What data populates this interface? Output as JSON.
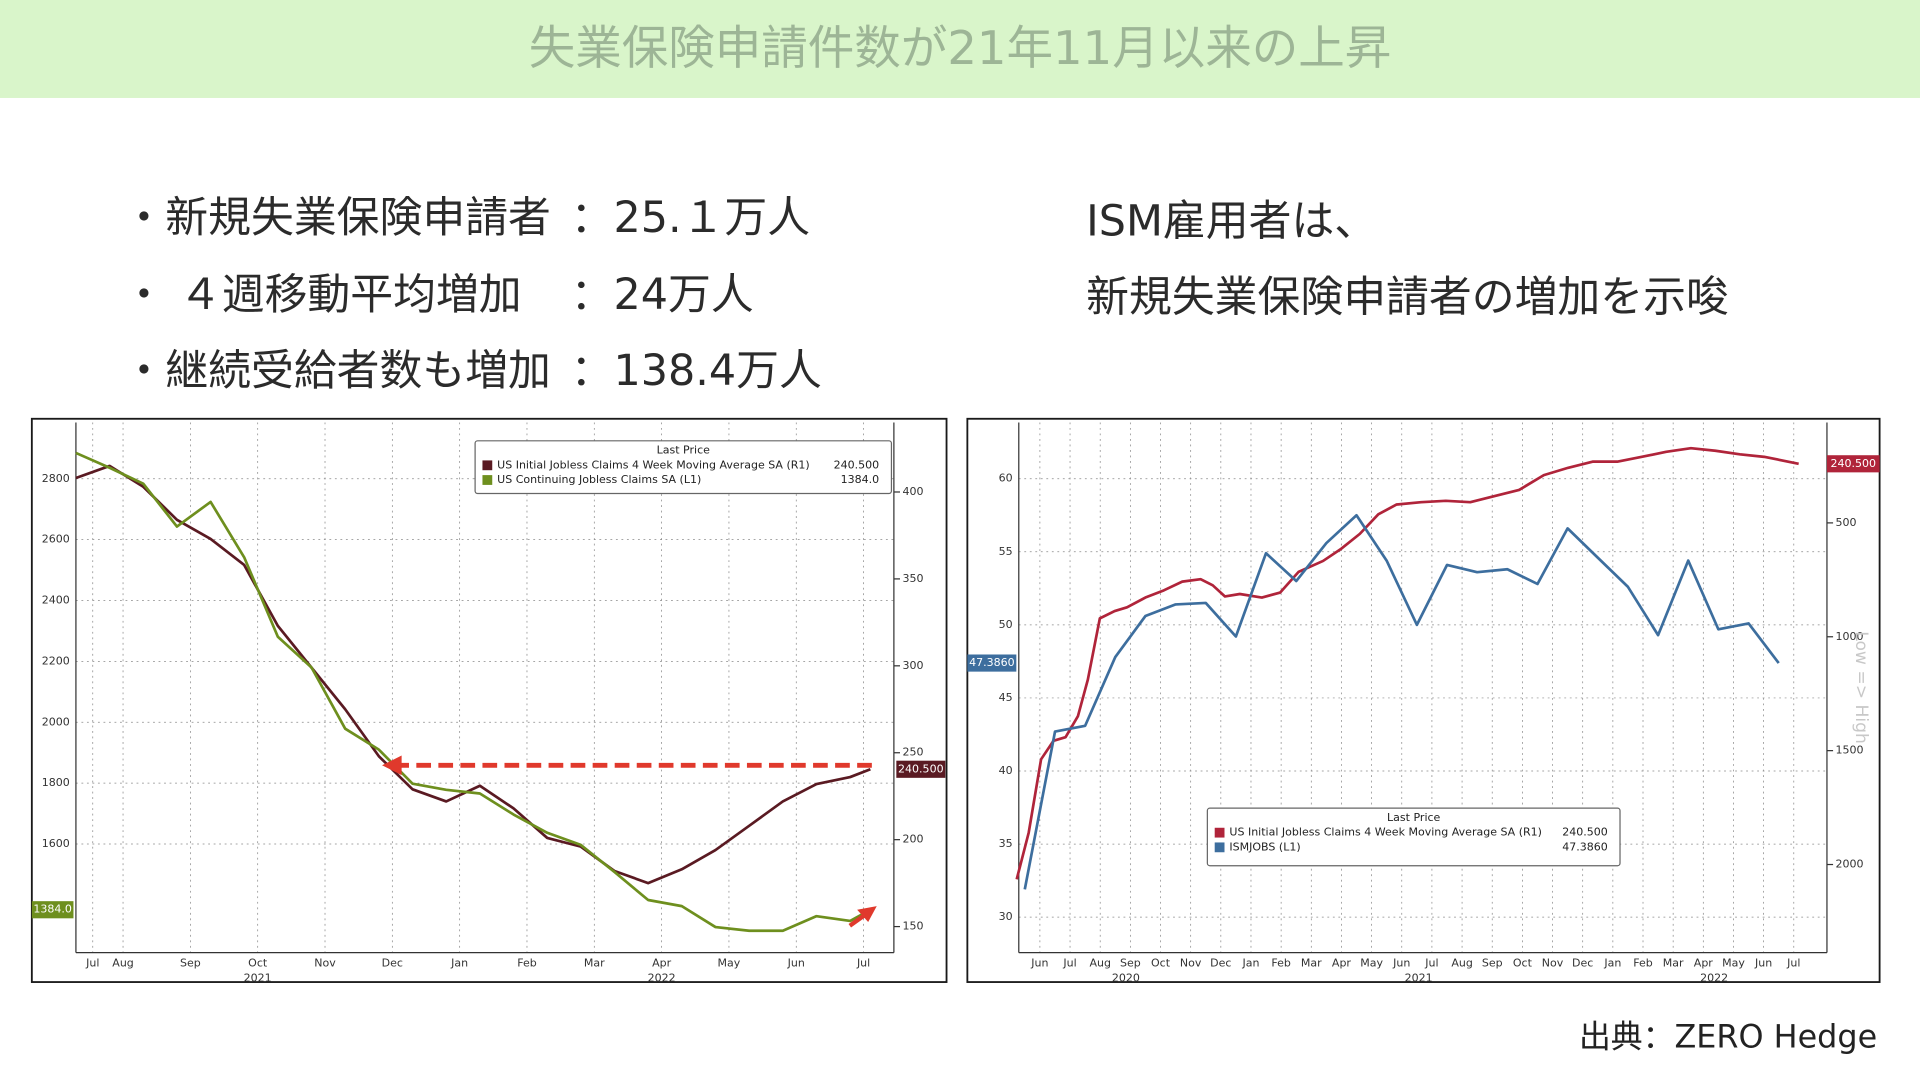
{
  "header": {
    "title": "失業保険申請件数が21年11月以来の上昇"
  },
  "bullets": [
    {
      "label": "・新規失業保険申請者",
      "value": "：25.１万人"
    },
    {
      "label": "・ ４週移動平均増加",
      "value": "：24万人"
    },
    {
      "label": "・継続受給者数も増加",
      "value": "：138.4万人"
    }
  ],
  "note": [
    "ISM雇用者は、",
    "新規失業保険申請者の増加を示唆"
  ],
  "source": "出典：ZERO Hedge",
  "chart_data": [
    {
      "type": "line",
      "legend_title": "Last Price",
      "grid": true,
      "xlim": [
        0.3,
        12.45
      ],
      "xticks": [
        {
          "value": 0.55,
          "label": "Jul"
        },
        {
          "value": 1,
          "label": "Aug"
        },
        {
          "value": 2,
          "label": "Sep"
        },
        {
          "value": 3,
          "label": "Oct"
        },
        {
          "value": 4,
          "label": "Nov"
        },
        {
          "value": 5,
          "label": "Dec"
        },
        {
          "value": 6,
          "label": "Jan"
        },
        {
          "value": 7,
          "label": "Feb"
        },
        {
          "value": 8,
          "label": "Mar"
        },
        {
          "value": 9,
          "label": "Apr"
        },
        {
          "value": 10,
          "label": "May"
        },
        {
          "value": 11,
          "label": "Jun"
        },
        {
          "value": 12,
          "label": "Jul"
        }
      ],
      "x_groups": [
        {
          "label": "2021",
          "x": 3
        },
        {
          "label": "2022",
          "x": 9
        }
      ],
      "ylim": [
        1243,
        2985
      ],
      "yticks": [
        1600,
        1800,
        2000,
        2200,
        2400,
        2600,
        2800
      ],
      "y2lim": [
        135,
        440
      ],
      "y2ticks": [
        150,
        200,
        250,
        300,
        350,
        400
      ],
      "series": [
        {
          "name": "US Initial Jobless Claims 4 Week Moving Average SA  (R1)",
          "color": "#5a1a22",
          "axis": "y2",
          "last_label": "240.500",
          "x": [
            0.3,
            0.8,
            1.3,
            1.8,
            2.3,
            2.8,
            3.3,
            3.8,
            4.3,
            4.8,
            5.3,
            5.8,
            6.3,
            6.8,
            7.3,
            7.8,
            8.3,
            8.8,
            9.3,
            9.8,
            10.3,
            10.8,
            11.3,
            11.8,
            12.1
          ],
          "values": [
            408,
            415,
            403,
            384,
            373,
            358,
            323,
            299,
            275,
            248,
            229,
            222,
            231,
            218,
            201,
            196,
            182,
            175,
            183,
            194,
            208,
            222,
            232,
            236,
            240.5
          ]
        },
        {
          "name": "US Continuing Jobless Claims SA  (L1)",
          "color": "#6e8f1e",
          "axis": "y",
          "last_label": "1384.0",
          "x": [
            0.3,
            0.8,
            1.3,
            1.8,
            2.3,
            2.8,
            3.3,
            3.8,
            4.3,
            4.8,
            5.3,
            5.8,
            6.3,
            6.8,
            7.3,
            7.8,
            8.3,
            8.8,
            9.3,
            9.8,
            10.3,
            10.8,
            11.3,
            11.8,
            12.1
          ],
          "values": [
            2885,
            2836,
            2784,
            2643,
            2724,
            2542,
            2281,
            2180,
            1979,
            1910,
            1798,
            1778,
            1766,
            1697,
            1637,
            1597,
            1508,
            1416,
            1396,
            1327,
            1315,
            1315,
            1363,
            1347,
            1384
          ]
        }
      ]
    },
    {
      "type": "line",
      "legend_title": "Last Price",
      "grid": true,
      "xlim": [
        0.3,
        27.1
      ],
      "xticks": [
        {
          "value": 1,
          "label": "Jun"
        },
        {
          "value": 2,
          "label": "Jul"
        },
        {
          "value": 3,
          "label": "Aug"
        },
        {
          "value": 4,
          "label": "Sep"
        },
        {
          "value": 5,
          "label": "Oct"
        },
        {
          "value": 6,
          "label": "Nov"
        },
        {
          "value": 7,
          "label": "Dec"
        },
        {
          "value": 8,
          "label": "Jan"
        },
        {
          "value": 9,
          "label": "Feb"
        },
        {
          "value": 10,
          "label": "Mar"
        },
        {
          "value": 11,
          "label": "Apr"
        },
        {
          "value": 12,
          "label": "May"
        },
        {
          "value": 13,
          "label": "Jun"
        },
        {
          "value": 14,
          "label": "Jul"
        },
        {
          "value": 15,
          "label": "Aug"
        },
        {
          "value": 16,
          "label": "Sep"
        },
        {
          "value": 17,
          "label": "Oct"
        },
        {
          "value": 18,
          "label": "Nov"
        },
        {
          "value": 19,
          "label": "Dec"
        },
        {
          "value": 20,
          "label": "Jan"
        },
        {
          "value": 21,
          "label": "Feb"
        },
        {
          "value": 22,
          "label": "Mar"
        },
        {
          "value": 23,
          "label": "Apr"
        },
        {
          "value": 24,
          "label": "May"
        },
        {
          "value": 25,
          "label": "Jun"
        },
        {
          "value": 26,
          "label": "Jul"
        }
      ],
      "x_groups": [
        {
          "label": "2020",
          "x": 3.85
        },
        {
          "label": "2021",
          "x": 13.56
        },
        {
          "label": "2022",
          "x": 23.36
        }
      ],
      "ylim": [
        27.57,
        63.85
      ],
      "yticks": [
        30,
        35,
        40,
        45,
        50,
        55,
        60
      ],
      "y2lim": [
        59,
        2387
      ],
      "y2_inverted": true,
      "y2ticks": [
        500,
        1000,
        1500,
        2000
      ],
      "right_axis_label": "Low => High",
      "series": [
        {
          "name": "US Initial Jobless Claims 4 Week Moving Average SA (R1)",
          "color": "#b0243a",
          "axis": "y2",
          "last_label": "240.500",
          "x": [
            0.23,
            0.63,
            1.04,
            1.45,
            1.85,
            2.26,
            2.59,
            2.99,
            3.48,
            3.89,
            4.5,
            5.11,
            5.72,
            6.33,
            6.73,
            7.14,
            7.63,
            8.36,
            8.97,
            9.58,
            10.39,
            11.0,
            11.61,
            12.22,
            12.83,
            13.64,
            14.46,
            15.27,
            16.08,
            16.89,
            17.71,
            18.52,
            19.33,
            20.15,
            20.96,
            21.77,
            22.59,
            23.4,
            24.21,
            25.02,
            25.63,
            26.16
          ],
          "values": [
            2065,
            1860,
            1538,
            1457,
            1441,
            1349,
            1188,
            919,
            887,
            871,
            828,
            796,
            758,
            747,
            774,
            823,
            812,
            828,
            806,
            715,
            667,
            613,
            548,
            462,
            419,
            409,
            403,
            409,
            382,
            355,
            290,
            258,
            231,
            231,
            210,
            188,
            172,
            183,
            199,
            210,
            226,
            240.5
          ]
        },
        {
          "name": "ISMJOBS  (L1)",
          "color": "#3d6e9e",
          "axis": "y",
          "last_label": "47.3860",
          "x": [
            0.5,
            1.5,
            2.5,
            3.5,
            4.5,
            5.5,
            6.5,
            7.5,
            8.5,
            9.5,
            10.5,
            11.5,
            12.5,
            13.5,
            14.5,
            15.5,
            16.5,
            17.5,
            18.5,
            19.5,
            20.5,
            21.5,
            22.5,
            23.5,
            24.5,
            25.5
          ],
          "values": [
            31.9,
            42.7,
            43.1,
            47.8,
            50.6,
            51.4,
            51.5,
            49.2,
            54.9,
            53.0,
            55.6,
            57.5,
            54.4,
            50.0,
            54.1,
            53.6,
            53.8,
            52.8,
            56.6,
            54.6,
            52.6,
            49.3,
            54.4,
            49.7,
            50.1,
            47.386
          ]
        }
      ]
    }
  ]
}
